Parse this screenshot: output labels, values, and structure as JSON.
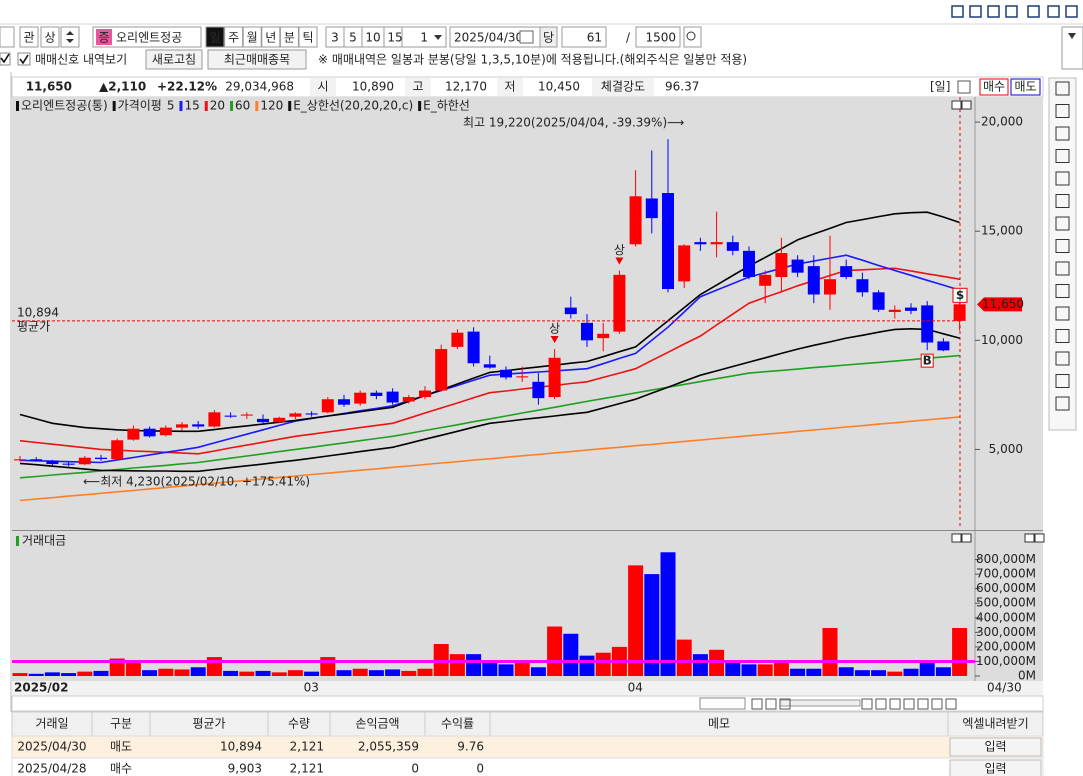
{
  "toolbar": {
    "btn_gwan": "관",
    "btn_sang": "상",
    "stock_badge": "증",
    "stock": "오리엔트정공",
    "periods": [
      "일",
      "주",
      "월",
      "년",
      "분",
      "틱"
    ],
    "minutes": [
      "3",
      "5",
      "10",
      "15"
    ],
    "unit": "1",
    "date": "2025/04/30",
    "dang": "당",
    "count": "61",
    "slash": "/",
    "max": "1500"
  },
  "options": {
    "signal": "매매신호 내역보기",
    "refresh": "새로고침",
    "recent": "최근매매종목",
    "notice": "※ 매매내역은 일봉과 분봉(당일 1,3,5,10분)에 적용됩니다.(해외주식은 일봉만 적용)"
  },
  "quote": {
    "price": "11,650",
    "change": "▲2,110",
    "rate": "+22.12%",
    "volume": "29,034,968",
    "open_label": "시",
    "open": "10,890",
    "high_label": "고",
    "high": "12,170",
    "low_label": "저",
    "low": "10,450",
    "strength_label": "체결강도",
    "strength": "96.37",
    "period": "[일]",
    "buy": "매수",
    "sell": "매도"
  },
  "chart_data": [
    {
      "type": "candlestick",
      "title": "오리엔트정공(통)",
      "ma_title": "가격이평",
      "ma5": "5",
      "colors": {
        "up": "#ff0000",
        "down": "#0000ff"
      },
      "candles": [
        [
          4500,
          4700,
          4450,
          4550
        ],
        [
          4550,
          4650,
          4450,
          4480
        ],
        [
          4480,
          4520,
          4250,
          4330
        ],
        [
          4350,
          4420,
          4230,
          4300
        ],
        [
          4320,
          4700,
          4280,
          4620
        ],
        [
          4620,
          4750,
          4480,
          4560
        ],
        [
          4550,
          5500,
          4500,
          5420
        ],
        [
          5450,
          6100,
          5400,
          5950
        ],
        [
          5950,
          6050,
          5550,
          5600
        ],
        [
          5650,
          6100,
          5600,
          6000
        ],
        [
          6000,
          6250,
          5850,
          6150
        ],
        [
          6150,
          6300,
          5950,
          6050
        ],
        [
          6050,
          6800,
          6000,
          6700
        ],
        [
          6550,
          6700,
          6450,
          6500
        ],
        [
          6550,
          6700,
          6400,
          6600
        ],
        [
          6400,
          6600,
          6200,
          6250
        ],
        [
          6250,
          6500,
          6200,
          6450
        ],
        [
          6500,
          6700,
          6400,
          6650
        ],
        [
          6650,
          6750,
          6500,
          6600
        ],
        [
          6700,
          7400,
          6650,
          7300
        ],
        [
          7300,
          7500,
          6950,
          7050
        ],
        [
          7100,
          7700,
          7000,
          7600
        ],
        [
          7600,
          7700,
          7300,
          7450
        ],
        [
          7650,
          7800,
          7050,
          7150
        ],
        [
          7200,
          7500,
          7100,
          7400
        ],
        [
          7400,
          7900,
          7300,
          7700
        ],
        [
          7700,
          9800,
          7650,
          9600
        ],
        [
          9700,
          10500,
          9600,
          10350
        ],
        [
          10400,
          10600,
          8800,
          8950
        ],
        [
          8900,
          9300,
          8700,
          8750
        ],
        [
          8650,
          8800,
          8200,
          8300
        ],
        [
          8300,
          8800,
          8100,
          8350
        ],
        [
          8100,
          8500,
          7050,
          7350
        ],
        [
          7400,
          9600,
          7300,
          9200
        ],
        [
          11500,
          12000,
          11000,
          11200
        ],
        [
          10800,
          11200,
          9700,
          10000
        ],
        [
          10100,
          10800,
          9500,
          10300
        ],
        [
          10400,
          13200,
          10300,
          13000
        ],
        [
          14400,
          17800,
          14300,
          16600
        ],
        [
          16500,
          18700,
          14900,
          15600
        ],
        [
          16750,
          19220,
          12200,
          12350
        ],
        [
          12700,
          14400,
          12400,
          14350
        ],
        [
          14500,
          14700,
          14100,
          14400
        ],
        [
          14400,
          15900,
          13800,
          14500
        ],
        [
          14500,
          14800,
          13900,
          14100
        ],
        [
          14100,
          14300,
          12800,
          12900
        ],
        [
          12500,
          13200,
          11700,
          13000
        ],
        [
          12900,
          14700,
          12200,
          14000
        ],
        [
          13700,
          13900,
          12900,
          13100
        ],
        [
          13400,
          13900,
          11700,
          12100
        ],
        [
          12100,
          14800,
          11400,
          12800
        ],
        [
          13400,
          13700,
          12800,
          12900
        ],
        [
          12800,
          13100,
          12000,
          12200
        ],
        [
          12200,
          12300,
          11300,
          11400
        ],
        [
          11300,
          11600,
          11000,
          11400
        ],
        [
          11500,
          11700,
          11200,
          11350
        ],
        [
          11600,
          11800,
          9550,
          9900
        ],
        [
          9950,
          10100,
          9500,
          9540
        ],
        [
          10890,
          12170,
          10450,
          11650
        ]
      ],
      "series": [
        {
          "name": "120",
          "color": "#ff7f27",
          "values": [
            2660,
            2730,
            2790,
            2860,
            2920,
            2990,
            3060,
            3120,
            3190,
            3250,
            3320,
            3390,
            3450,
            3520,
            3580,
            3650,
            3720,
            3780,
            3850,
            3910,
            3980,
            4050,
            4110,
            4180,
            4240,
            4310,
            4380,
            4440,
            4510,
            4570,
            4640,
            4710,
            4770,
            4840,
            4900,
            4970,
            5040,
            5100,
            5170,
            5230,
            5300,
            5370,
            5430,
            5500,
            5560,
            5630,
            5700,
            5760,
            5830,
            5890,
            5960,
            6030,
            6090,
            6160,
            6220,
            6290,
            6360,
            6420,
            6490
          ]
        },
        {
          "name": "60",
          "color": "#1fa01f",
          "values": [
            3700,
            3760,
            3830,
            3890,
            3950,
            4020,
            4080,
            4150,
            4210,
            4270,
            4340,
            4400,
            4500,
            4600,
            4700,
            4800,
            4900,
            5000,
            5100,
            5200,
            5300,
            5400,
            5500,
            5600,
            5730,
            5870,
            6000,
            6130,
            6270,
            6400,
            6530,
            6670,
            6800,
            6930,
            7070,
            7200,
            7330,
            7460,
            7590,
            7720,
            7850,
            7980,
            8110,
            8240,
            8370,
            8500,
            8560,
            8620,
            8680,
            8750,
            8810,
            8870,
            8930,
            8990,
            9050,
            9110,
            9180,
            9240,
            9300
          ]
        },
        {
          "name": "E_하한선",
          "color": "#000000",
          "values": [
            4360,
            4300,
            4230,
            4170,
            4100,
            4040,
            4030,
            4020,
            4010,
            4010,
            4000,
            4000,
            4080,
            4170,
            4250,
            4330,
            4420,
            4500,
            4600,
            4700,
            4800,
            4900,
            5000,
            5100,
            5280,
            5470,
            5650,
            5830,
            6020,
            6200,
            6280,
            6370,
            6450,
            6530,
            6620,
            6700,
            6900,
            7100,
            7300,
            7580,
            7850,
            8130,
            8400,
            8600,
            8800,
            9000,
            9200,
            9400,
            9600,
            9770,
            9930,
            10100,
            10230,
            10370,
            10500,
            10530,
            10500,
            10300,
            10100
          ]
        },
        {
          "name": "20",
          "color": "#ee1111",
          "values": [
            5400,
            5320,
            5240,
            5160,
            5080,
            5000,
            4970,
            4930,
            4900,
            4870,
            4830,
            4800,
            4930,
            5070,
            5200,
            5330,
            5470,
            5600,
            5700,
            5800,
            5900,
            6000,
            6100,
            6200,
            6430,
            6670,
            6900,
            7130,
            7370,
            7600,
            7680,
            7770,
            7850,
            7930,
            8020,
            8100,
            8300,
            8500,
            8700,
            9080,
            9450,
            9830,
            10200,
            10700,
            11200,
            11700,
            11970,
            12230,
            12500,
            12730,
            12970,
            13200,
            13230,
            13270,
            13300,
            13180,
            13050,
            12930,
            12800
          ]
        },
        {
          "name": "15",
          "color": "#1a1aff",
          "values": [
            4500,
            4480,
            4460,
            4440,
            4420,
            4400,
            4520,
            4630,
            4750,
            4870,
            4980,
            5100,
            5300,
            5500,
            5700,
            5900,
            6100,
            6300,
            6420,
            6530,
            6650,
            6770,
            6880,
            7000,
            7230,
            7470,
            7700,
            7930,
            8170,
            8400,
            8450,
            8500,
            8550,
            8600,
            8650,
            8700,
            8930,
            9170,
            9400,
            10000,
            10600,
            11300,
            12000,
            12300,
            12600,
            12900,
            13100,
            13300,
            13500,
            13630,
            13770,
            13900,
            13670,
            13430,
            13200,
            12980,
            12750,
            12530,
            12300
          ]
        },
        {
          "name": "E_상한선(20,20,20,c)",
          "color": "#000000",
          "values": [
            6600,
            6400,
            6200,
            6100,
            6000,
            5950,
            5900,
            5870,
            5850,
            5840,
            5830,
            5830,
            5910,
            6000,
            6080,
            6160,
            6250,
            6330,
            6430,
            6530,
            6630,
            6730,
            6830,
            6930,
            7200,
            7470,
            7730,
            8000,
            8270,
            8530,
            8610,
            8700,
            8780,
            8860,
            8950,
            9030,
            9250,
            9480,
            9700,
            10300,
            10900,
            11500,
            12100,
            12530,
            12970,
            13400,
            13800,
            14200,
            14600,
            14870,
            15130,
            15400,
            15530,
            15670,
            15800,
            15850,
            15870,
            15650,
            15400
          ]
        }
      ],
      "ylim": [
        1400,
        21150
      ],
      "yticks": [
        {
          "value": 5000,
          "label": "5,000"
        },
        {
          "value": 10000,
          "label": "10,000"
        },
        {
          "value": 15000,
          "label": "15,000"
        },
        {
          "value": 20000,
          "label": "20,000"
        }
      ],
      "annotations": {
        "high": "최고 19,220(2025/04/04, -39.39%)⟶",
        "low": "⟵최저 4,230(2025/02/10, +175.41%)",
        "signals": [
          "상",
          "상"
        ],
        "buy_marker": "B",
        "dollar": "$",
        "avg_price": 10894,
        "avg_price_label": "10,894",
        "avg_label": "평균가",
        "current": 11650,
        "current_label": "11,650"
      }
    },
    {
      "type": "bar",
      "title": "거래대금",
      "categories": [
        "2025/02",
        null,
        null,
        null,
        null,
        null,
        null,
        null,
        null,
        null,
        null,
        null,
        null,
        null,
        null,
        null,
        null,
        null,
        "03",
        null,
        null,
        null,
        null,
        null,
        null,
        null,
        null,
        null,
        null,
        null,
        null,
        null,
        null,
        null,
        null,
        null,
        null,
        null,
        "04",
        null,
        null,
        null,
        null,
        null,
        null,
        null,
        null,
        null,
        null,
        null,
        null,
        null,
        null,
        null,
        null,
        null,
        null,
        null,
        "04/30"
      ],
      "values": [
        20000,
        15000,
        25000,
        20000,
        30000,
        35000,
        120000,
        100000,
        40000,
        50000,
        45000,
        60000,
        130000,
        35000,
        30000,
        35000,
        25000,
        40000,
        30000,
        130000,
        40000,
        50000,
        40000,
        45000,
        35000,
        50000,
        220000,
        150000,
        150000,
        90000,
        80000,
        90000,
        60000,
        340000,
        290000,
        140000,
        160000,
        200000,
        760000,
        700000,
        850000,
        250000,
        150000,
        180000,
        90000,
        80000,
        80000,
        90000,
        50000,
        50000,
        330000,
        60000,
        40000,
        40000,
        30000,
        50000,
        90000,
        60000,
        330000
      ],
      "ylim": [
        0,
        900000
      ],
      "yticks": [
        {
          "value": 0,
          "label": "0M"
        },
        {
          "value": 100000,
          "label": "100,000M"
        },
        {
          "value": 200000,
          "label": "200,000M"
        },
        {
          "value": 300000,
          "label": "300,000M"
        },
        {
          "value": 400000,
          "label": "400,000M"
        },
        {
          "value": 500000,
          "label": "500,000M"
        },
        {
          "value": 600000,
          "label": "600,000M"
        },
        {
          "value": 700000,
          "label": "700,000M"
        },
        {
          "value": 800000,
          "label": "800,000M"
        }
      ],
      "reference_line": {
        "value": 100000,
        "color": "#ff00ff"
      }
    }
  ],
  "table": {
    "headers": [
      "거래일",
      "구분",
      "평균가",
      "수량",
      "손익금액",
      "수익률",
      "메모",
      "엑셀내려받기"
    ],
    "rows": [
      [
        "2025/04/30",
        "매도",
        "10,894",
        "2,121",
        "2,055,359",
        "9.76",
        "입력"
      ],
      [
        "2025/04/28",
        "매수",
        "9,903",
        "2,121",
        "0",
        "0",
        "입력"
      ]
    ]
  }
}
